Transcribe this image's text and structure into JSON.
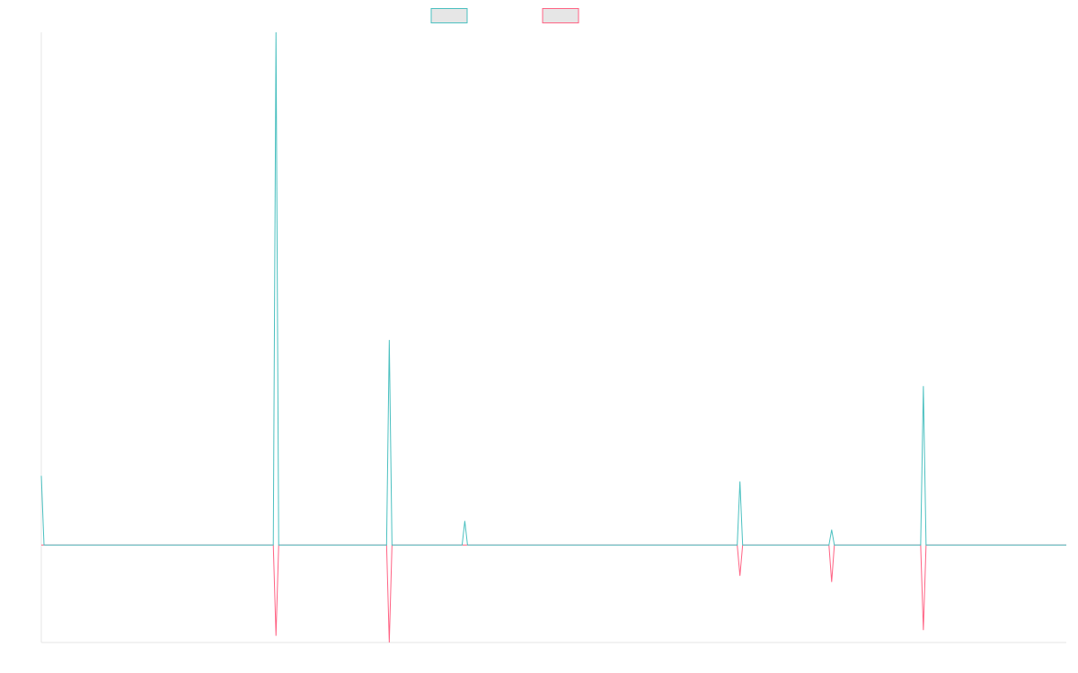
{
  "chart_data": {
    "type": "line",
    "x": [
      0,
      1,
      86,
      87,
      88,
      128,
      129,
      130,
      156,
      157,
      158,
      258,
      259,
      260,
      292,
      293,
      294,
      326,
      327,
      328,
      380
    ],
    "series": [
      {
        "color": "#4bc0c0",
        "values": [
          13.5,
          0,
          0,
          100,
          0,
          0,
          40,
          0,
          0,
          4.7,
          0,
          0,
          12.4,
          0,
          0,
          3,
          0,
          0,
          31,
          0,
          0
        ]
      },
      {
        "color": "#ff6384",
        "values": [
          0,
          0,
          0,
          -17.7,
          0,
          0,
          -19,
          0,
          0,
          0,
          0,
          0,
          -6,
          0,
          0,
          -7.2,
          0,
          0,
          -16.6,
          0,
          0
        ]
      }
    ],
    "xlim": [
      0,
      380
    ],
    "ylim": [
      -19,
      100
    ],
    "grid": false
  }
}
